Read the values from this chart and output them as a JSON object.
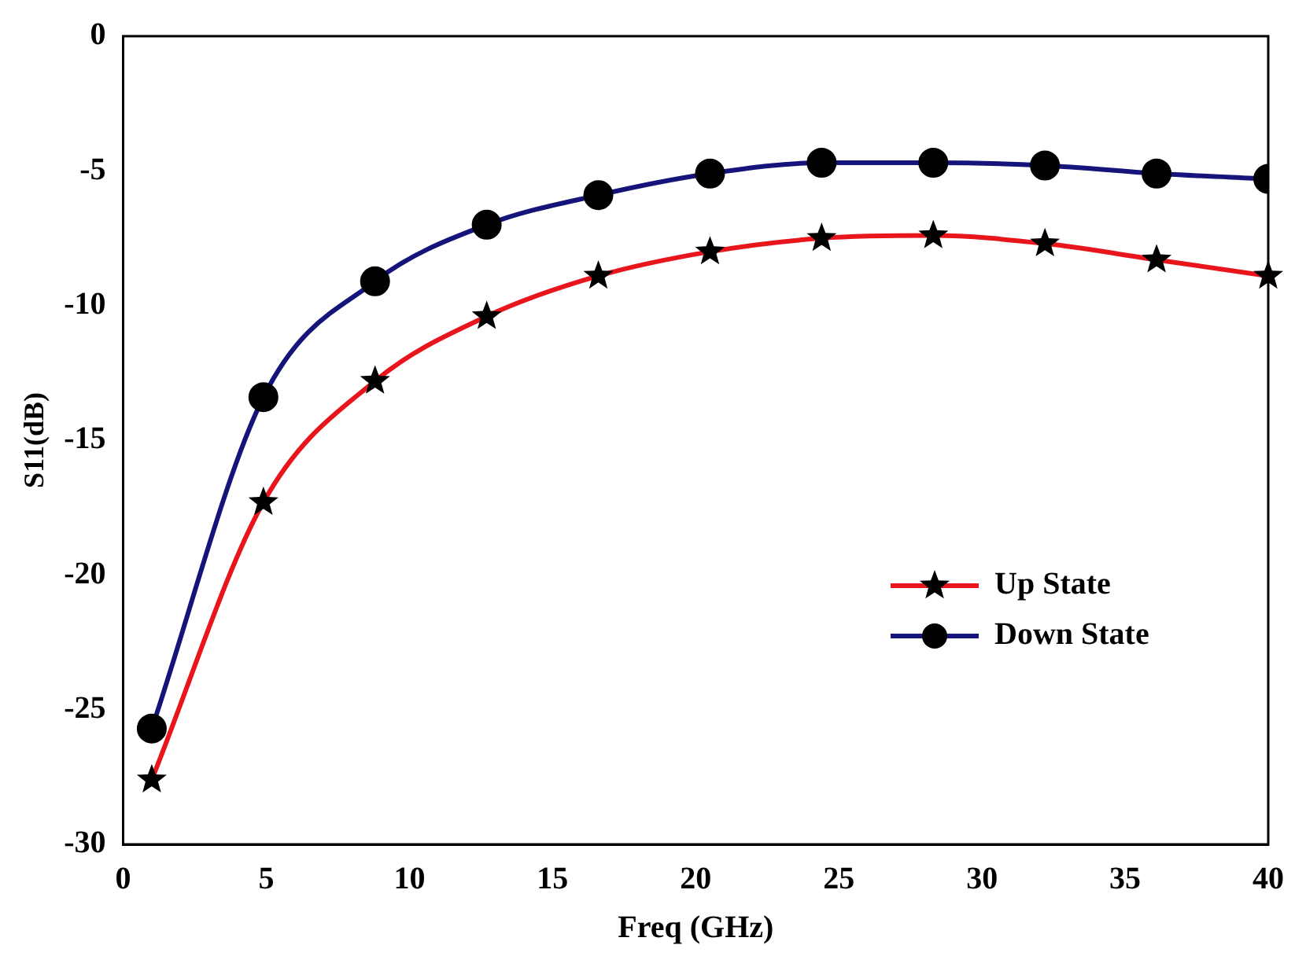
{
  "chart_data": {
    "type": "line",
    "xlabel": "Freq (GHz)",
    "ylabel": "S11(dB)",
    "x": [
      1,
      4.9,
      8.8,
      12.7,
      16.6,
      20.5,
      24.4,
      28.3,
      32.2,
      36.1,
      40
    ],
    "series": [
      {
        "name": "Up State",
        "color": "#e8161c",
        "marker": "star",
        "values": [
          -27.6,
          -17.3,
          -12.8,
          -10.4,
          -8.9,
          -8.0,
          -7.5,
          -7.4,
          -7.7,
          -8.3,
          -8.9
        ]
      },
      {
        "name": "Down State",
        "color": "#14147a",
        "marker": "circle",
        "values": [
          -25.7,
          -13.4,
          -9.1,
          -7.0,
          -5.9,
          -5.1,
          -4.7,
          -4.7,
          -4.8,
          -5.1,
          -5.3
        ]
      }
    ],
    "xlim": [
      0,
      40
    ],
    "xticks": [
      0,
      5,
      10,
      15,
      20,
      25,
      30,
      35,
      40
    ],
    "ylim": [
      -30,
      0
    ],
    "yticks": [
      -30,
      -25,
      -20,
      -15,
      -10,
      -5,
      0
    ],
    "grid": false,
    "legend": "right"
  }
}
